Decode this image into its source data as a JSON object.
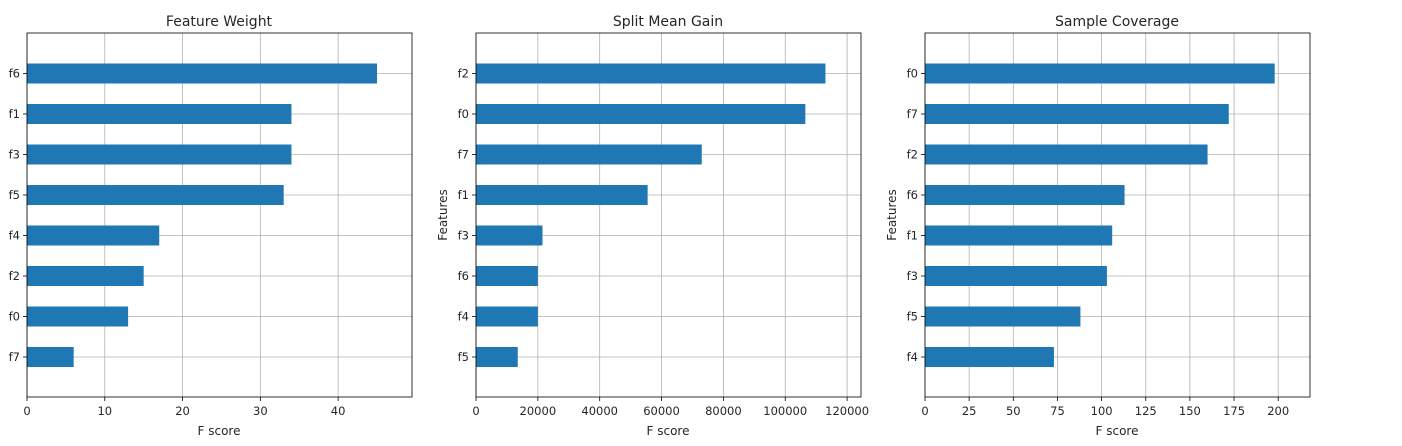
{
  "chart_data": [
    {
      "type": "bar",
      "orientation": "horizontal",
      "title": "Feature Weight",
      "xlabel": "F score",
      "ylabel": "",
      "categories": [
        "f6",
        "f1",
        "f3",
        "f5",
        "f4",
        "f2",
        "f0",
        "f7"
      ],
      "values": [
        45,
        34,
        34,
        33,
        17,
        15,
        13,
        6
      ],
      "xlim": [
        0,
        49.5
      ],
      "xticks": [
        0,
        10,
        20,
        30,
        40
      ],
      "xtick_labels": [
        "0",
        "10",
        "20",
        "30",
        "40"
      ],
      "grid": true,
      "bar_color": "#1f77b4"
    },
    {
      "type": "bar",
      "orientation": "horizontal",
      "title": "Split Mean Gain",
      "xlabel": "F score",
      "ylabel": "Features",
      "categories": [
        "f2",
        "f0",
        "f7",
        "f1",
        "f3",
        "f6",
        "f4",
        "f5"
      ],
      "values": [
        113000,
        106500,
        73000,
        55500,
        21500,
        20000,
        20000,
        13500
      ],
      "xlim": [
        0,
        124500
      ],
      "xticks": [
        0,
        20000,
        40000,
        60000,
        80000,
        100000,
        120000
      ],
      "xtick_labels": [
        "0",
        "20000",
        "40000",
        "60000",
        "80000",
        "100000",
        "120000"
      ],
      "grid": true,
      "bar_color": "#1f77b4"
    },
    {
      "type": "bar",
      "orientation": "horizontal",
      "title": "Sample Coverage",
      "xlabel": "F score",
      "ylabel": "Features",
      "categories": [
        "f0",
        "f7",
        "f2",
        "f6",
        "f1",
        "f3",
        "f5",
        "f4"
      ],
      "values": [
        198,
        172,
        160,
        113,
        106,
        103,
        88,
        73
      ],
      "xlim": [
        0,
        218
      ],
      "xticks": [
        0,
        25,
        50,
        75,
        100,
        125,
        150,
        175,
        200
      ],
      "xtick_labels": [
        "0",
        "25",
        "50",
        "75",
        "100",
        "125",
        "150",
        "175",
        "200"
      ],
      "grid": true,
      "bar_color": "#1f77b4"
    }
  ]
}
